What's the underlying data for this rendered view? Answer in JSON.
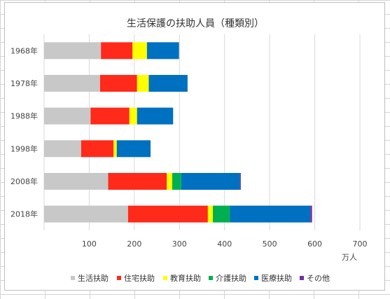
{
  "chart_data": {
    "type": "bar",
    "orientation": "horizontal",
    "stacked": true,
    "title": "生活保護の扶助人員（種類別）",
    "xlabel": "万人",
    "ylabel": "",
    "categories": [
      "1968年",
      "1978年",
      "1988年",
      "1998年",
      "2008年",
      "2018年"
    ],
    "category_order": "top-to-bottom",
    "xlim": [
      0,
      700
    ],
    "xticks": [
      "100",
      "200",
      "300",
      "400",
      "500",
      "600",
      "700"
    ],
    "grid": "vertical",
    "legend_position": "bottom",
    "series": [
      {
        "name": "生活扶助",
        "color": "#c8c8c8",
        "values": [
          126,
          124,
          103,
          82,
          142,
          186
        ]
      },
      {
        "name": "住宅扶助",
        "color": "#ff2a1a",
        "values": [
          70,
          82,
          86,
          72,
          130,
          177
        ]
      },
      {
        "name": "教育扶助",
        "color": "#ffff00",
        "values": [
          32,
          26,
          17,
          7,
          12,
          11
        ]
      },
      {
        "name": "介護扶助",
        "color": "#00b050",
        "values": [
          0,
          0,
          0,
          0,
          20,
          38
        ]
      },
      {
        "name": "医療扶助",
        "color": "#0070c0",
        "values": [
          71,
          86,
          80,
          75,
          130,
          178
        ]
      },
      {
        "name": "その他",
        "color": "#7030a0",
        "values": [
          0,
          0,
          0,
          0,
          2,
          4
        ]
      }
    ]
  }
}
